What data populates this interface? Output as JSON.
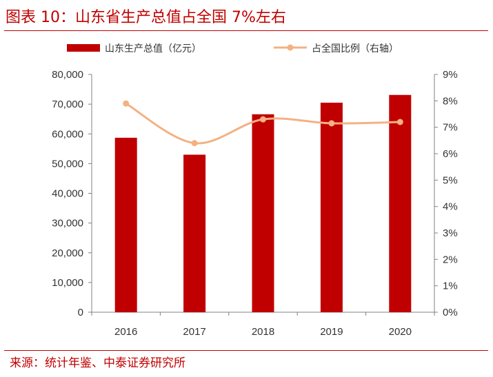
{
  "header": {
    "title": "图表 10：山东省生产总值占全国 7%左右"
  },
  "footer": {
    "source": "来源：统计年鉴、中泰证券研究所"
  },
  "colors": {
    "bar": "#c00000",
    "line": "#f4b183",
    "axis": "#808080",
    "accent": "#c00000"
  },
  "chart_data": {
    "type": "bar",
    "categories": [
      "2016",
      "2017",
      "2018",
      "2019",
      "2020"
    ],
    "series": [
      {
        "name": "山东生产总值（亿元）",
        "type": "bar",
        "axis": "left",
        "values": [
          58700,
          53000,
          66600,
          70500,
          73100
        ]
      },
      {
        "name": "占全国比例（右轴）",
        "type": "line",
        "axis": "right",
        "values": [
          7.9,
          6.4,
          7.3,
          7.15,
          7.2
        ]
      }
    ],
    "y_left": {
      "lim": [
        0,
        80000
      ],
      "ticks": [
        "0",
        "10,000",
        "20,000",
        "30,000",
        "40,000",
        "50,000",
        "60,000",
        "70,000",
        "80,000"
      ]
    },
    "y_right": {
      "lim": [
        0,
        9
      ],
      "ticks": [
        "0%",
        "1%",
        "2%",
        "3%",
        "4%",
        "5%",
        "6%",
        "7%",
        "8%",
        "9%"
      ]
    },
    "grid": false,
    "legend": "top"
  }
}
